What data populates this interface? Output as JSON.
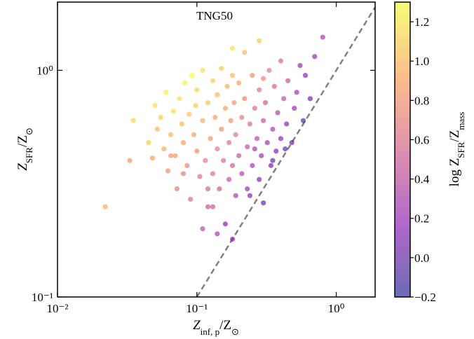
{
  "chart_data": {
    "type": "scatter",
    "annotation": "TNG50",
    "xlabel": [
      "Z",
      "inf, p",
      "/Z",
      "⊙"
    ],
    "ylabel": [
      "Z",
      "SFR",
      "/Z",
      "⊙"
    ],
    "colorbar_label": [
      "log Z",
      "SFR",
      "/Z",
      "mass"
    ],
    "xscale": "log",
    "yscale": "log",
    "xlim": [
      0.01,
      1.9
    ],
    "ylim": [
      0.1,
      2
    ],
    "xticks": [
      {
        "value": 0.01,
        "label": "10⁻²"
      },
      {
        "value": 0.1,
        "label": "10⁻¹"
      },
      {
        "value": 1,
        "label": "10⁰"
      }
    ],
    "yticks": [
      {
        "value": 0.1,
        "label": "10⁻¹"
      },
      {
        "value": 1,
        "label": "10⁰"
      }
    ],
    "colormap": "plasma",
    "alpha": 0.6,
    "clim": [
      -0.2,
      1.3
    ],
    "cticks": [
      {
        "value": -0.2,
        "label": "−0.2"
      },
      {
        "value": 0,
        "label": "0.0"
      },
      {
        "value": 0.2,
        "label": "0.2"
      },
      {
        "value": 0.4,
        "label": "0.4"
      },
      {
        "value": 0.6,
        "label": "0.6"
      },
      {
        "value": 0.8,
        "label": "0.8"
      },
      {
        "value": 1,
        "label": "1.0"
      },
      {
        "value": 1.2,
        "label": "1.2"
      }
    ],
    "reference_line": {
      "style": "dashed",
      "color": "#808080"
    },
    "x": [
      0.022,
      0.033,
      0.035,
      0.045,
      0.048,
      0.05,
      0.052,
      0.055,
      0.058,
      0.06,
      0.062,
      0.065,
      0.068,
      0.07,
      0.072,
      0.075,
      0.078,
      0.08,
      0.082,
      0.085,
      0.088,
      0.09,
      0.092,
      0.095,
      0.098,
      0.1,
      0.1,
      0.105,
      0.11,
      0.11,
      0.115,
      0.12,
      0.12,
      0.125,
      0.13,
      0.13,
      0.135,
      0.14,
      0.14,
      0.145,
      0.15,
      0.15,
      0.155,
      0.16,
      0.16,
      0.165,
      0.17,
      0.17,
      0.175,
      0.18,
      0.18,
      0.185,
      0.19,
      0.19,
      0.2,
      0.2,
      0.21,
      0.21,
      0.22,
      0.22,
      0.23,
      0.23,
      0.24,
      0.25,
      0.25,
      0.26,
      0.27,
      0.28,
      0.28,
      0.29,
      0.3,
      0.3,
      0.31,
      0.32,
      0.33,
      0.34,
      0.35,
      0.36,
      0.37,
      0.38,
      0.4,
      0.4,
      0.42,
      0.44,
      0.45,
      0.48,
      0.5,
      0.52,
      0.55,
      0.58,
      0.6,
      0.65,
      0.7,
      0.8,
      0.18,
      0.14,
      0.13,
      0.12,
      0.11,
      0.26,
      0.35,
      0.43,
      0.24,
      0.18,
      0.28,
      0.3,
      0.08,
      0.065
    ],
    "y": [
      0.25,
      0.4,
      0.6,
      0.48,
      0.41,
      0.7,
      0.55,
      0.62,
      0.45,
      0.8,
      0.36,
      0.52,
      0.66,
      0.42,
      0.3,
      0.75,
      0.58,
      0.48,
      0.88,
      0.38,
      0.64,
      0.27,
      0.95,
      0.52,
      0.7,
      0.44,
      0.82,
      0.34,
      0.6,
      1.0,
      0.4,
      0.72,
      0.25,
      0.5,
      0.9,
      0.35,
      0.62,
      0.45,
      0.78,
      0.3,
      1.02,
      0.55,
      0.4,
      0.68,
      0.21,
      0.85,
      0.48,
      0.33,
      0.6,
      0.95,
      0.38,
      0.72,
      0.28,
      0.52,
      0.42,
      0.88,
      0.62,
      0.35,
      1.2,
      0.75,
      0.46,
      0.3,
      0.58,
      0.95,
      0.38,
      0.68,
      0.5,
      0.82,
      0.33,
      0.42,
      0.6,
      0.26,
      0.72,
      0.48,
      1.0,
      0.38,
      0.55,
      0.85,
      0.44,
      0.65,
      0.5,
      1.1,
      0.75,
      0.58,
      0.9,
      0.48,
      0.68,
      0.8,
      1.05,
      0.6,
      0.95,
      0.75,
      1.15,
      1.4,
      0.18,
      0.19,
      0.25,
      0.3,
      0.2,
      0.45,
      0.4,
      0.45,
      0.28,
      1.25,
      1.35,
      0.92,
      0.35,
      0.42
    ],
    "c": [
      0.95,
      0.85,
      1.15,
      1.1,
      0.9,
      1.2,
      1.0,
      1.1,
      0.95,
      1.25,
      0.8,
      1.0,
      1.15,
      0.85,
      0.7,
      1.2,
      1.0,
      0.9,
      1.25,
      0.75,
      1.05,
      0.6,
      1.3,
      0.9,
      1.1,
      0.8,
      1.15,
      0.65,
      0.95,
      1.2,
      0.7,
      1.05,
      0.5,
      0.85,
      1.1,
      0.6,
      0.9,
      0.7,
      1.0,
      0.5,
      1.1,
      0.8,
      0.6,
      0.9,
      0.1,
      0.95,
      0.65,
      0.45,
      0.8,
      1.0,
      0.5,
      0.85,
      0.3,
      0.65,
      0.45,
      0.9,
      0.7,
      0.35,
      1.0,
      0.75,
      0.45,
      0.2,
      0.6,
      0.8,
      0.3,
      0.6,
      0.4,
      0.65,
      0.1,
      0.25,
      0.45,
      0.0,
      0.5,
      0.25,
      0.7,
      0.05,
      0.3,
      0.55,
      0.1,
      0.35,
      0.15,
      0.6,
      0.4,
      0.15,
      0.45,
      0.0,
      0.2,
      0.25,
      0.2,
      -0.05,
      0.15,
      0.05,
      0.2,
      0.3,
      0.2,
      0.3,
      0.5,
      0.55,
      0.4,
      0.3,
      0.0,
      0.0,
      0.1,
      1.2,
      1.1,
      0.75,
      0.7,
      0.85
    ]
  }
}
